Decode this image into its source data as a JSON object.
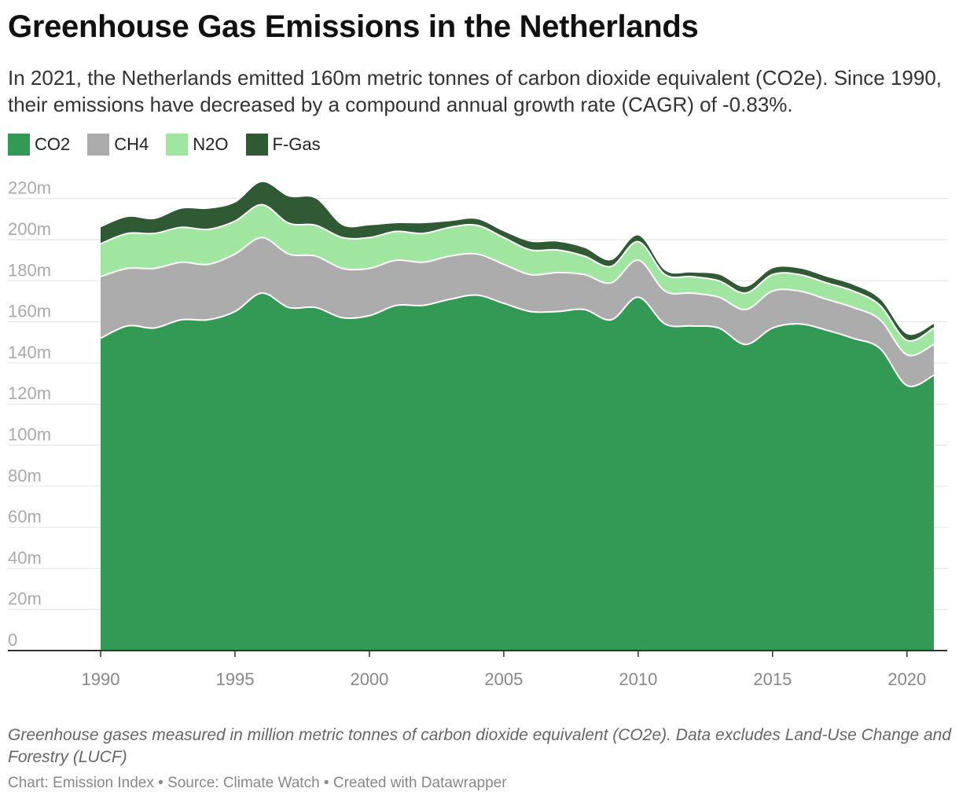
{
  "header": {
    "title": "Greenhouse Gas Emissions in the Netherlands",
    "subtitle": "In 2021, the Netherlands emitted 160m metric tonnes of carbon dioxide equivalent (CO2e). Since 1990, their emissions have decreased by a compound annual growth rate (CAGR) of -0.83%."
  },
  "legend": [
    {
      "label": "CO2",
      "color": "#339a56"
    },
    {
      "label": "CH4",
      "color": "#acacac"
    },
    {
      "label": "N2O",
      "color": "#a0e6a1"
    },
    {
      "label": "F-Gas",
      "color": "#2f5a34"
    }
  ],
  "footer": {
    "note": "Greenhouse gases measured in million metric tonnes of carbon dioxide equivalent (CO2e). Data excludes Land-Use Change and Forestry (LUCF)",
    "source": "Chart: Emission Index • Source: Climate Watch • Created with Datawrapper"
  },
  "chart_data": {
    "type": "area",
    "stacked": true,
    "x": [
      1990,
      1991,
      1992,
      1993,
      1994,
      1995,
      1996,
      1997,
      1998,
      1999,
      2000,
      2001,
      2002,
      2003,
      2004,
      2005,
      2006,
      2007,
      2008,
      2009,
      2010,
      2011,
      2012,
      2013,
      2014,
      2015,
      2016,
      2017,
      2018,
      2019,
      2020,
      2021
    ],
    "series": [
      {
        "name": "CO2",
        "color": "#339a56",
        "values": [
          152,
          158,
          157,
          161,
          161,
          165,
          174,
          167,
          167,
          162,
          163,
          168,
          168,
          171,
          173,
          169,
          165,
          165,
          166,
          161,
          172,
          159,
          158,
          157,
          149,
          157,
          159,
          156,
          152,
          147,
          129,
          134
        ]
      },
      {
        "name": "CH4",
        "color": "#acacac",
        "values": [
          30,
          28,
          29,
          28,
          27,
          28,
          27,
          26,
          25,
          24,
          23,
          22,
          21,
          21,
          20,
          19,
          18,
          19,
          17,
          18,
          18,
          16,
          16,
          15,
          17,
          18,
          16,
          15,
          15,
          14,
          15,
          15
        ]
      },
      {
        "name": "N2O",
        "color": "#a0e6a1",
        "values": [
          16,
          17,
          17,
          17,
          17,
          16,
          16,
          15,
          15,
          15,
          15,
          14,
          14,
          14,
          14,
          13,
          12,
          11,
          9,
          8,
          9,
          8,
          8,
          8,
          8,
          8,
          8,
          8,
          8,
          7,
          7,
          8
        ]
      },
      {
        "name": "F-Gas",
        "color": "#2f5a34",
        "values": [
          8,
          8,
          7,
          9,
          10,
          9,
          11,
          13,
          13,
          6,
          6,
          4,
          5,
          3,
          3,
          3,
          4,
          4,
          4,
          3,
          3,
          2,
          2,
          3,
          3,
          3,
          3,
          3,
          3,
          3,
          3,
          2
        ]
      }
    ],
    "xticks": [
      "1990",
      "1995",
      "2000",
      "2005",
      "2010",
      "2015",
      "2020"
    ],
    "yticks": [
      "0",
      "20m",
      "40m",
      "60m",
      "80m",
      "100m",
      "120m",
      "140m",
      "160m",
      "180m",
      "200m",
      "220m"
    ],
    "ylim": [
      0,
      230
    ],
    "grid": true,
    "legend_position": "top-left"
  }
}
